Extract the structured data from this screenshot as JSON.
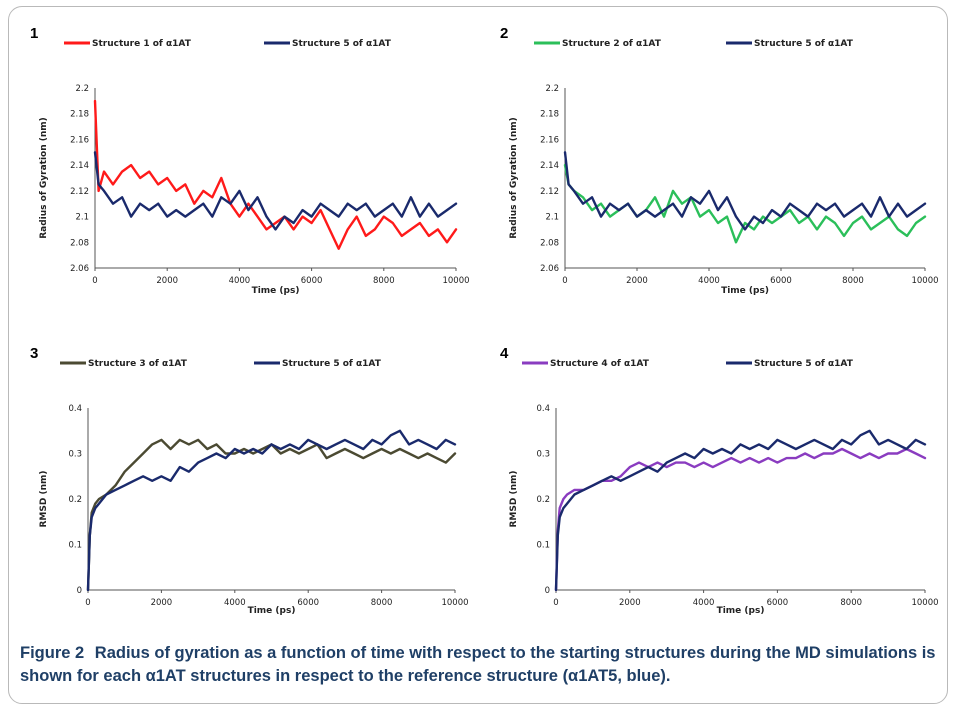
{
  "caption": {
    "label": "Figure 2",
    "text": "Radius of gyration as a function of time with respect to the starting structures during the MD simulations is shown for each α1AT structures in respect to the reference structure (α1AT5, blue)."
  },
  "colors": {
    "red": "#ff1a1a",
    "navy": "#1a2a6c",
    "green": "#2bbf5a",
    "olive": "#4b4a32",
    "purple": "#8a3cc0"
  },
  "chart_data": [
    {
      "panel": "1",
      "type": "line",
      "xlabel": "Time (ps)",
      "ylabel": "Radius of Gyration (nm)",
      "xlim": [
        0,
        10000
      ],
      "ylim": [
        2.06,
        2.2
      ],
      "xticks": [
        "0",
        "2000",
        "4000",
        "6000",
        "8000",
        "10000"
      ],
      "yticks": [
        "2.06",
        "2.08",
        "2.1",
        "2.12",
        "2.14",
        "2.16",
        "2.18",
        "2.2"
      ],
      "series": [
        {
          "name": "Structure 1 of α1AT",
          "color": "#ff1a1a",
          "x": [
            0,
            100,
            250,
            500,
            750,
            1000,
            1250,
            1500,
            1750,
            2000,
            2250,
            2500,
            2750,
            3000,
            3250,
            3500,
            3750,
            4000,
            4250,
            4500,
            4750,
            5000,
            5250,
            5500,
            5750,
            6000,
            6250,
            6500,
            6750,
            7000,
            7250,
            7500,
            7750,
            8000,
            8250,
            8500,
            8750,
            9000,
            9250,
            9500,
            9750,
            10000
          ],
          "y": [
            2.19,
            2.12,
            2.135,
            2.125,
            2.135,
            2.14,
            2.13,
            2.135,
            2.125,
            2.13,
            2.12,
            2.125,
            2.11,
            2.12,
            2.115,
            2.13,
            2.11,
            2.1,
            2.11,
            2.1,
            2.09,
            2.095,
            2.1,
            2.09,
            2.1,
            2.095,
            2.105,
            2.09,
            2.075,
            2.09,
            2.1,
            2.085,
            2.09,
            2.1,
            2.095,
            2.085,
            2.09,
            2.095,
            2.085,
            2.09,
            2.08,
            2.09
          ]
        },
        {
          "name": "Structure 5 of α1AT",
          "color": "#1a2a6c",
          "x": [
            0,
            100,
            250,
            500,
            750,
            1000,
            1250,
            1500,
            1750,
            2000,
            2250,
            2500,
            2750,
            3000,
            3250,
            3500,
            3750,
            4000,
            4250,
            4500,
            4750,
            5000,
            5250,
            5500,
            5750,
            6000,
            6250,
            6500,
            6750,
            7000,
            7250,
            7500,
            7750,
            8000,
            8250,
            8500,
            8750,
            9000,
            9250,
            9500,
            9750,
            10000
          ],
          "y": [
            2.15,
            2.125,
            2.12,
            2.11,
            2.115,
            2.1,
            2.11,
            2.105,
            2.11,
            2.1,
            2.105,
            2.1,
            2.105,
            2.11,
            2.1,
            2.115,
            2.11,
            2.12,
            2.105,
            2.115,
            2.1,
            2.09,
            2.1,
            2.095,
            2.105,
            2.1,
            2.11,
            2.105,
            2.1,
            2.11,
            2.105,
            2.11,
            2.1,
            2.105,
            2.11,
            2.1,
            2.115,
            2.1,
            2.11,
            2.1,
            2.105,
            2.11
          ]
        }
      ],
      "legend": "top"
    },
    {
      "panel": "2",
      "type": "line",
      "xlabel": "Time (ps)",
      "ylabel": "Radius of Gyration (nm)",
      "xlim": [
        0,
        10000
      ],
      "ylim": [
        2.06,
        2.2
      ],
      "xticks": [
        "0",
        "2000",
        "4000",
        "6000",
        "8000",
        "10000"
      ],
      "yticks": [
        "2.06",
        "2.08",
        "2.1",
        "2.12",
        "2.14",
        "2.16",
        "2.18",
        "2.2"
      ],
      "series": [
        {
          "name": "Structure 2 of α1AT",
          "color": "#2bbf5a",
          "x": [
            0,
            100,
            250,
            500,
            750,
            1000,
            1250,
            1500,
            1750,
            2000,
            2250,
            2500,
            2750,
            3000,
            3250,
            3500,
            3750,
            4000,
            4250,
            4500,
            4750,
            5000,
            5250,
            5500,
            5750,
            6000,
            6250,
            6500,
            6750,
            7000,
            7250,
            7500,
            7750,
            8000,
            8250,
            8500,
            8750,
            9000,
            9250,
            9500,
            9750,
            10000
          ],
          "y": [
            2.14,
            2.125,
            2.12,
            2.115,
            2.105,
            2.11,
            2.1,
            2.105,
            2.11,
            2.1,
            2.105,
            2.115,
            2.1,
            2.12,
            2.11,
            2.115,
            2.1,
            2.105,
            2.095,
            2.1,
            2.08,
            2.095,
            2.09,
            2.1,
            2.095,
            2.1,
            2.105,
            2.095,
            2.1,
            2.09,
            2.1,
            2.095,
            2.085,
            2.095,
            2.1,
            2.09,
            2.095,
            2.1,
            2.09,
            2.085,
            2.095,
            2.1
          ]
        },
        {
          "name": "Structure 5 of α1AT",
          "color": "#1a2a6c",
          "x": [
            0,
            100,
            250,
            500,
            750,
            1000,
            1250,
            1500,
            1750,
            2000,
            2250,
            2500,
            2750,
            3000,
            3250,
            3500,
            3750,
            4000,
            4250,
            4500,
            4750,
            5000,
            5250,
            5500,
            5750,
            6000,
            6250,
            6500,
            6750,
            7000,
            7250,
            7500,
            7750,
            8000,
            8250,
            8500,
            8750,
            9000,
            9250,
            9500,
            9750,
            10000
          ],
          "y": [
            2.15,
            2.125,
            2.12,
            2.11,
            2.115,
            2.1,
            2.11,
            2.105,
            2.11,
            2.1,
            2.105,
            2.1,
            2.105,
            2.11,
            2.1,
            2.115,
            2.11,
            2.12,
            2.105,
            2.115,
            2.1,
            2.09,
            2.1,
            2.095,
            2.105,
            2.1,
            2.11,
            2.105,
            2.1,
            2.11,
            2.105,
            2.11,
            2.1,
            2.105,
            2.11,
            2.1,
            2.115,
            2.1,
            2.11,
            2.1,
            2.105,
            2.11
          ]
        }
      ],
      "legend": "top"
    },
    {
      "panel": "3",
      "type": "line",
      "xlabel": "Time (ps)",
      "ylabel": "RMSD (nm)",
      "xlim": [
        0,
        10000
      ],
      "ylim": [
        0,
        0.4
      ],
      "xticks": [
        "0",
        "2000",
        "4000",
        "6000",
        "8000",
        "10000"
      ],
      "yticks": [
        "0",
        "0.1",
        "0.2",
        "0.3",
        "0.4"
      ],
      "series": [
        {
          "name": "Structure 3 of α1AT",
          "color": "#4b4a32",
          "x": [
            0,
            50,
            100,
            200,
            300,
            500,
            750,
            1000,
            1250,
            1500,
            1750,
            2000,
            2250,
            2500,
            2750,
            3000,
            3250,
            3500,
            3750,
            4000,
            4250,
            4500,
            4750,
            5000,
            5250,
            5500,
            5750,
            6000,
            6250,
            6500,
            6750,
            7000,
            7250,
            7500,
            7750,
            8000,
            8250,
            8500,
            8750,
            9000,
            9250,
            9500,
            9750,
            10000
          ],
          "y": [
            0,
            0.12,
            0.17,
            0.19,
            0.2,
            0.21,
            0.23,
            0.26,
            0.28,
            0.3,
            0.32,
            0.33,
            0.31,
            0.33,
            0.32,
            0.33,
            0.31,
            0.32,
            0.3,
            0.3,
            0.31,
            0.3,
            0.31,
            0.32,
            0.3,
            0.31,
            0.3,
            0.31,
            0.32,
            0.29,
            0.3,
            0.31,
            0.3,
            0.29,
            0.3,
            0.31,
            0.3,
            0.31,
            0.3,
            0.29,
            0.3,
            0.29,
            0.28,
            0.3
          ]
        },
        {
          "name": "Structure 5 of α1AT",
          "color": "#1a2a6c",
          "x": [
            0,
            50,
            100,
            200,
            300,
            500,
            750,
            1000,
            1250,
            1500,
            1750,
            2000,
            2250,
            2500,
            2750,
            3000,
            3250,
            3500,
            3750,
            4000,
            4250,
            4500,
            4750,
            5000,
            5250,
            5500,
            5750,
            6000,
            6250,
            6500,
            6750,
            7000,
            7250,
            7500,
            7750,
            8000,
            8250,
            8500,
            8750,
            9000,
            9250,
            9500,
            9750,
            10000
          ],
          "y": [
            0,
            0.12,
            0.16,
            0.18,
            0.19,
            0.21,
            0.22,
            0.23,
            0.24,
            0.25,
            0.24,
            0.25,
            0.24,
            0.27,
            0.26,
            0.28,
            0.29,
            0.3,
            0.29,
            0.31,
            0.3,
            0.31,
            0.3,
            0.32,
            0.31,
            0.32,
            0.31,
            0.33,
            0.32,
            0.31,
            0.32,
            0.33,
            0.32,
            0.31,
            0.33,
            0.32,
            0.34,
            0.35,
            0.32,
            0.33,
            0.32,
            0.31,
            0.33,
            0.32
          ]
        }
      ],
      "legend": "top"
    },
    {
      "panel": "4",
      "type": "line",
      "xlabel": "Time (ps)",
      "ylabel": "RMSD (nm)",
      "xlim": [
        0,
        10000
      ],
      "ylim": [
        0,
        0.4
      ],
      "xticks": [
        "0",
        "2000",
        "4000",
        "6000",
        "8000",
        "10000"
      ],
      "yticks": [
        "0",
        "0.1",
        "0.2",
        "0.3",
        "0.4"
      ],
      "series": [
        {
          "name": "Structure 4 of α1AT",
          "color": "#8a3cc0",
          "x": [
            0,
            50,
            100,
            200,
            300,
            500,
            750,
            1000,
            1250,
            1500,
            1750,
            2000,
            2250,
            2500,
            2750,
            3000,
            3250,
            3500,
            3750,
            4000,
            4250,
            4500,
            4750,
            5000,
            5250,
            5500,
            5750,
            6000,
            6250,
            6500,
            6750,
            7000,
            7250,
            7500,
            7750,
            8000,
            8250,
            8500,
            8750,
            9000,
            9250,
            9500,
            9750,
            10000
          ],
          "y": [
            0,
            0.13,
            0.18,
            0.2,
            0.21,
            0.22,
            0.22,
            0.23,
            0.24,
            0.24,
            0.25,
            0.27,
            0.28,
            0.27,
            0.28,
            0.27,
            0.28,
            0.28,
            0.27,
            0.28,
            0.27,
            0.28,
            0.29,
            0.28,
            0.29,
            0.28,
            0.29,
            0.28,
            0.29,
            0.29,
            0.3,
            0.29,
            0.3,
            0.3,
            0.31,
            0.3,
            0.29,
            0.3,
            0.29,
            0.3,
            0.3,
            0.31,
            0.3,
            0.29
          ]
        },
        {
          "name": "Structure 5 of α1AT",
          "color": "#1a2a6c",
          "x": [
            0,
            50,
            100,
            200,
            300,
            500,
            750,
            1000,
            1250,
            1500,
            1750,
            2000,
            2250,
            2500,
            2750,
            3000,
            3250,
            3500,
            3750,
            4000,
            4250,
            4500,
            4750,
            5000,
            5250,
            5500,
            5750,
            6000,
            6250,
            6500,
            6750,
            7000,
            7250,
            7500,
            7750,
            8000,
            8250,
            8500,
            8750,
            9000,
            9250,
            9500,
            9750,
            10000
          ],
          "y": [
            0,
            0.12,
            0.16,
            0.18,
            0.19,
            0.21,
            0.22,
            0.23,
            0.24,
            0.25,
            0.24,
            0.25,
            0.26,
            0.27,
            0.26,
            0.28,
            0.29,
            0.3,
            0.29,
            0.31,
            0.3,
            0.31,
            0.3,
            0.32,
            0.31,
            0.32,
            0.31,
            0.33,
            0.32,
            0.31,
            0.32,
            0.33,
            0.32,
            0.31,
            0.33,
            0.32,
            0.34,
            0.35,
            0.32,
            0.33,
            0.32,
            0.31,
            0.33,
            0.32
          ]
        }
      ],
      "legend": "top"
    }
  ]
}
